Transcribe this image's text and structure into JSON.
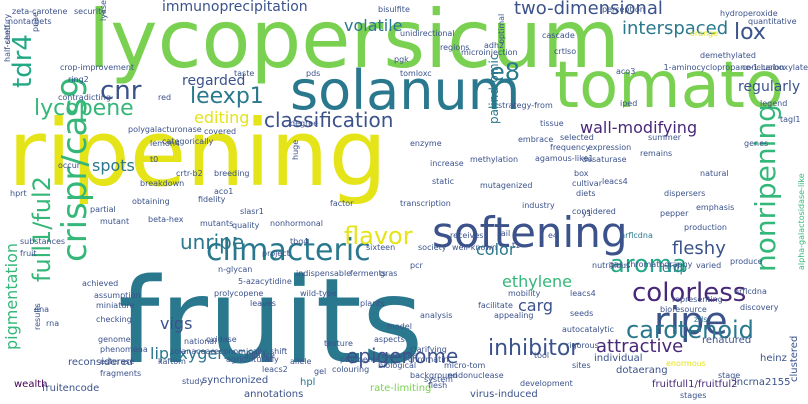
{
  "words": [
    {
      "text": "ripening",
      "color": "#e4e419"
    },
    {
      "text": "fruits",
      "color": "#2a788e"
    },
    {
      "text": "lycopersicum",
      "color": "#7ad151"
    },
    {
      "text": "tomato",
      "color": "#7ad151"
    },
    {
      "text": "solanum",
      "color": "#2a788e"
    },
    {
      "text": "softening",
      "color": "#3b528b"
    },
    {
      "text": "climacteric",
      "color": "#2a788e"
    },
    {
      "text": "crispr/cas9",
      "color": "#35b779"
    },
    {
      "text": "full1/ful2",
      "color": "#35b779"
    },
    {
      "text": "nonripening",
      "color": "#35b779"
    },
    {
      "text": "ripe",
      "color": "#3b528b"
    },
    {
      "text": "aroma",
      "color": "#22a884"
    },
    {
      "text": "colorless",
      "color": "#482878"
    },
    {
      "text": "carotenoid",
      "color": "#2a788e"
    },
    {
      "text": "flavor",
      "color": "#e4e419"
    },
    {
      "text": "unripe",
      "color": "#2a788e"
    },
    {
      "text": "leexp1",
      "color": "#2a788e"
    },
    {
      "text": "lycopene",
      "color": "#35b779"
    },
    {
      "text": "classification",
      "color": "#3b528b"
    },
    {
      "text": "editing",
      "color": "#e4e419"
    },
    {
      "text": "cnr",
      "color": "#3b528b"
    },
    {
      "text": "e8",
      "color": "#2a788e"
    },
    {
      "text": "lox",
      "color": "#3b528b"
    },
    {
      "text": "tdr4",
      "color": "#22a884"
    },
    {
      "text": "pigmentation",
      "color": "#35b779"
    },
    {
      "text": "lipoxygenase",
      "color": "#2a788e"
    },
    {
      "text": "epigenome",
      "color": "#3b528b"
    },
    {
      "text": "inhibitor",
      "color": "#3b528b"
    },
    {
      "text": "attractive",
      "color": "#482878"
    },
    {
      "text": "fleshy",
      "color": "#3b528b"
    },
    {
      "text": "ethylene",
      "color": "#35b779"
    },
    {
      "text": "color",
      "color": "#2a788e"
    },
    {
      "text": "chip",
      "color": "#2a788e"
    },
    {
      "text": "carg",
      "color": "#3b528b"
    },
    {
      "text": "vigs",
      "color": "#3b528b"
    },
    {
      "text": "spots",
      "color": "#2a788e"
    },
    {
      "text": "regarded",
      "color": "#3b528b"
    },
    {
      "text": "volatile",
      "color": "#2a788e"
    },
    {
      "text": "interspaced",
      "color": "#2a788e"
    },
    {
      "text": "two-dimensional",
      "color": "#3b528b"
    },
    {
      "text": "immunoprecipitation",
      "color": "#3b528b"
    },
    {
      "text": "wall-modifying",
      "color": "#482878"
    },
    {
      "text": "regularly",
      "color": "#3b528b"
    },
    {
      "text": "palindromic",
      "color": "#2a788e"
    },
    {
      "text": "synchronized",
      "color": "#3b528b"
    },
    {
      "text": "rate-limiting",
      "color": "#7ad151"
    },
    {
      "text": "hpl",
      "color": "#2a788e"
    },
    {
      "text": "annotations",
      "color": "#3b528b"
    },
    {
      "text": "virus-induced",
      "color": "#3b528b"
    },
    {
      "text": "fruitencode",
      "color": "#3b528b"
    },
    {
      "text": "wealth",
      "color": "#440154"
    },
    {
      "text": "reconsidered",
      "color": "#3b528b"
    },
    {
      "text": "fruitfull1/fruitful2",
      "color": "#482878"
    },
    {
      "text": "lncrna2155",
      "color": "#3b528b"
    },
    {
      "text": "clustered",
      "color": "#3b528b"
    },
    {
      "text": "heinz",
      "color": "#3b528b"
    },
    {
      "text": "dotaerang",
      "color": "#3b528b"
    },
    {
      "text": "individual",
      "color": "#3b528b"
    },
    {
      "text": "enormous",
      "color": "#e4e419"
    },
    {
      "text": "renatured",
      "color": "#3b528b"
    },
    {
      "text": "zds",
      "color": "#2a788e"
    },
    {
      "text": "alpha-galactosidase-like",
      "color": "#35b779"
    },
    {
      "text": "nrflcdna",
      "color": "#2a788e"
    },
    {
      "text": "achieved",
      "color": "#3b528b"
    },
    {
      "text": "assumption",
      "color": "#3b528b"
    },
    {
      "text": "miniature",
      "color": "#3b528b"
    },
    {
      "text": "checking",
      "color": "#3b528b"
    },
    {
      "text": "genome",
      "color": "#3b528b"
    },
    {
      "text": "phenomena",
      "color": "#3b528b"
    },
    {
      "text": "esterase",
      "color": "#3b528b"
    },
    {
      "text": "fragments",
      "color": "#3b528b"
    },
    {
      "text": "kaftom",
      "color": "#3b528b"
    },
    {
      "text": "solanaceae",
      "color": "#3b528b"
    },
    {
      "text": "national",
      "color": "#3b528b"
    },
    {
      "text": "oxidase",
      "color": "#3b528b"
    },
    {
      "text": "economically",
      "color": "#3b528b"
    },
    {
      "text": "agriculturally",
      "color": "#3b528b"
    },
    {
      "text": "alliance",
      "color": "#3b528b"
    },
    {
      "text": "shift",
      "color": "#3b528b"
    },
    {
      "text": "allele",
      "color": "#3b528b"
    },
    {
      "text": "gel",
      "color": "#3b528b"
    },
    {
      "text": "leacs2",
      "color": "#3b528b"
    },
    {
      "text": "texture",
      "color": "#3b528b"
    },
    {
      "text": "phytoene",
      "color": "#3b528b"
    },
    {
      "text": "aspects",
      "color": "#3b528b"
    },
    {
      "text": "resources",
      "color": "#3b528b"
    },
    {
      "text": "biological",
      "color": "#3b528b"
    },
    {
      "text": "background",
      "color": "#3b528b"
    },
    {
      "text": "flesh",
      "color": "#3b528b"
    },
    {
      "text": "clarifying",
      "color": "#3b528b"
    },
    {
      "text": "chromatin",
      "color": "#3b528b"
    },
    {
      "text": "colouring",
      "color": "#3b528b"
    },
    {
      "text": "endonuclease",
      "color": "#3b528b"
    },
    {
      "text": "micro-tom",
      "color": "#3b528b"
    },
    {
      "text": "sites",
      "color": "#3b528b"
    },
    {
      "text": "tool",
      "color": "#3b528b"
    },
    {
      "text": "rigorous",
      "color": "#3b528b"
    },
    {
      "text": "autocatalytic",
      "color": "#3b528b"
    },
    {
      "text": "appealing",
      "color": "#3b528b"
    },
    {
      "text": "facilitate",
      "color": "#3b528b"
    },
    {
      "text": "mobility",
      "color": "#3b528b"
    },
    {
      "text": "leacs4",
      "color": "#3b528b"
    },
    {
      "text": "representing",
      "color": "#3b528b"
    },
    {
      "text": "bioresource",
      "color": "#3b528b"
    },
    {
      "text": "discovery",
      "color": "#3b528b"
    },
    {
      "text": "nrflcdna",
      "color": "#3b528b"
    },
    {
      "text": "produce",
      "color": "#3b528b"
    },
    {
      "text": "varied",
      "color": "#3b528b"
    },
    {
      "text": "production",
      "color": "#3b528b"
    },
    {
      "text": "pepper",
      "color": "#3b528b"
    },
    {
      "text": "y1",
      "color": "#3b528b"
    },
    {
      "text": "t1",
      "color": "#3b528b"
    },
    {
      "text": "fail",
      "color": "#3b528b"
    },
    {
      "text": "pcr",
      "color": "#3b528b"
    },
    {
      "text": "gras",
      "color": "#3b528b"
    },
    {
      "text": "indispensable",
      "color": "#3b528b"
    },
    {
      "text": "project",
      "color": "#3b528b"
    },
    {
      "text": "5-azacytidine",
      "color": "#3b528b"
    },
    {
      "text": "prolycopene",
      "color": "#3b528b"
    },
    {
      "text": "n-glycan",
      "color": "#3b528b"
    },
    {
      "text": "nonhormonal",
      "color": "#3b528b"
    },
    {
      "text": "tbg4",
      "color": "#3b528b"
    },
    {
      "text": "sixteen",
      "color": "#3b528b"
    },
    {
      "text": "receives",
      "color": "#3b528b"
    },
    {
      "text": "well-known",
      "color": "#3b528b"
    },
    {
      "text": "e4",
      "color": "#3b528b"
    },
    {
      "text": "industry",
      "color": "#3b528b"
    },
    {
      "text": "diets",
      "color": "#3b528b"
    },
    {
      "text": "cultivar",
      "color": "#3b528b"
    },
    {
      "text": "dispersers",
      "color": "#3b528b"
    },
    {
      "text": "emphasis",
      "color": "#3b528b"
    },
    {
      "text": "leacs4",
      "color": "#3b528b"
    },
    {
      "text": "box",
      "color": "#3b528b"
    },
    {
      "text": "desaturase",
      "color": "#3b528b"
    },
    {
      "text": "frequency",
      "color": "#3b528b"
    },
    {
      "text": "selected",
      "color": "#3b528b"
    },
    {
      "text": "embrace",
      "color": "#3b528b"
    },
    {
      "text": "mutagenized",
      "color": "#3b528b"
    },
    {
      "text": "static",
      "color": "#3b528b"
    },
    {
      "text": "society",
      "color": "#3b528b"
    },
    {
      "text": "summer",
      "color": "#3b528b"
    },
    {
      "text": "quality",
      "color": "#3b528b"
    },
    {
      "text": "slasr1",
      "color": "#3b528b"
    },
    {
      "text": "beta-hex",
      "color": "#3b528b"
    },
    {
      "text": "fidelity",
      "color": "#3b528b"
    },
    {
      "text": "aco1",
      "color": "#3b528b"
    },
    {
      "text": "obtaining",
      "color": "#3b528b"
    },
    {
      "text": "crtr-b2",
      "color": "#3b528b"
    },
    {
      "text": "breeding",
      "color": "#3b528b"
    },
    {
      "text": "huge",
      "color": "#3b528b"
    },
    {
      "text": "covered",
      "color": "#3b528b"
    },
    {
      "text": "polygalacturonase",
      "color": "#3b528b"
    },
    {
      "text": "categorically",
      "color": "#3b528b"
    },
    {
      "text": "lemon4",
      "color": "#3b528b"
    },
    {
      "text": "t0",
      "color": "#3b528b"
    },
    {
      "text": "occur",
      "color": "#3b528b"
    },
    {
      "text": "partial",
      "color": "#3b528b"
    },
    {
      "text": "contradicting",
      "color": "#3b528b"
    },
    {
      "text": "red",
      "color": "#3b528b"
    },
    {
      "text": "taste",
      "color": "#3b528b"
    },
    {
      "text": "pds",
      "color": "#3b528b"
    },
    {
      "text": "tomloxc",
      "color": "#3b528b"
    },
    {
      "text": "aco3",
      "color": "#3b528b"
    },
    {
      "text": "1-aminocyclopropane-1-carboxylate",
      "color": "#3b528b"
    },
    {
      "text": "conclusion",
      "color": "#3b528b"
    },
    {
      "text": "quantitative",
      "color": "#3b528b"
    },
    {
      "text": "demethylated",
      "color": "#3b528b"
    },
    {
      "text": "orange",
      "color": "#e4e419"
    },
    {
      "text": "hydroperoxide",
      "color": "#3b528b"
    },
    {
      "text": "perception",
      "color": "#3b528b"
    },
    {
      "text": "crtlso",
      "color": "#3b528b"
    },
    {
      "text": "cascade",
      "color": "#3b528b"
    },
    {
      "text": "optimal",
      "color": "#3b528b"
    },
    {
      "text": "adh2",
      "color": "#3b528b"
    },
    {
      "text": "regions",
      "color": "#3b528b"
    },
    {
      "text": "unidirectional",
      "color": "#3b528b"
    },
    {
      "text": "pgk",
      "color": "#3b528b"
    },
    {
      "text": "bisulfite",
      "color": "#3b528b"
    },
    {
      "text": "lyase",
      "color": "#3b528b"
    },
    {
      "text": "security",
      "color": "#3b528b"
    },
    {
      "text": "zeta-carotene",
      "color": "#3b528b"
    },
    {
      "text": "nontargets",
      "color": "#3b528b"
    },
    {
      "text": "pnae",
      "color": "#3b528b"
    },
    {
      "text": "shelf",
      "color": "#3b528b"
    },
    {
      "text": "half-century",
      "color": "#3b528b"
    },
    {
      "text": "crop-improvement",
      "color": "#3b528b"
    },
    {
      "text": "ring2",
      "color": "#3b528b"
    },
    {
      "text": "tagl1",
      "color": "#3b528b"
    },
    {
      "text": "iped",
      "color": "#3b528b"
    },
    {
      "text": "legend",
      "color": "#3b528b"
    },
    {
      "text": "genes",
      "color": "#3b528b"
    },
    {
      "text": "remains",
      "color": "#3b528b"
    },
    {
      "text": "increase",
      "color": "#3b528b"
    },
    {
      "text": "enzyme",
      "color": "#3b528b"
    },
    {
      "text": "breakdown",
      "color": "#3b528b"
    },
    {
      "text": "hprt",
      "color": "#3b528b"
    },
    {
      "text": "substances",
      "color": "#3b528b"
    },
    {
      "text": "fruit",
      "color": "#3b528b"
    },
    {
      "text": "dna",
      "color": "#3b528b"
    },
    {
      "text": "rna",
      "color": "#3b528b"
    },
    {
      "text": "methylation",
      "color": "#3b528b"
    },
    {
      "text": "tissue",
      "color": "#3b528b"
    },
    {
      "text": "expression",
      "color": "#3b528b"
    },
    {
      "text": "transcription",
      "color": "#3b528b"
    },
    {
      "text": "factor",
      "color": "#3b528b"
    },
    {
      "text": "mutant",
      "color": "#3b528b"
    },
    {
      "text": "mutants",
      "color": "#3b528b"
    },
    {
      "text": "wild-type",
      "color": "#3b528b"
    },
    {
      "text": "plants",
      "color": "#3b528b"
    },
    {
      "text": "leaves",
      "color": "#3b528b"
    },
    {
      "text": "seeds",
      "color": "#3b528b"
    },
    {
      "text": "stage",
      "color": "#3b528b"
    },
    {
      "text": "stages",
      "color": "#3b528b"
    },
    {
      "text": "development",
      "color": "#3b528b"
    },
    {
      "text": "analysis",
      "color": "#3b528b"
    },
    {
      "text": "results",
      "color": "#3b528b"
    },
    {
      "text": "study",
      "color": "#3b528b"
    },
    {
      "text": "nutritious",
      "color": "#3b528b"
    },
    {
      "text": "natural",
      "color": "#3b528b"
    },
    {
      "text": "degree",
      "color": "#3b528b"
    },
    {
      "text": "ferments",
      "color": "#3b528b"
    },
    {
      "text": "model",
      "color": "#3b528b"
    },
    {
      "text": "system",
      "color": "#3b528b"
    },
    {
      "text": "microinjection",
      "color": "#3b528b"
    },
    {
      "text": "strategy-from",
      "color": "#3b528b"
    },
    {
      "text": "agamous-like1",
      "color": "#3b528b"
    },
    {
      "text": "considered",
      "color": "#3b528b"
    },
    {
      "text": "gas-chromatography",
      "color": "#3b528b"
    }
  ]
}
